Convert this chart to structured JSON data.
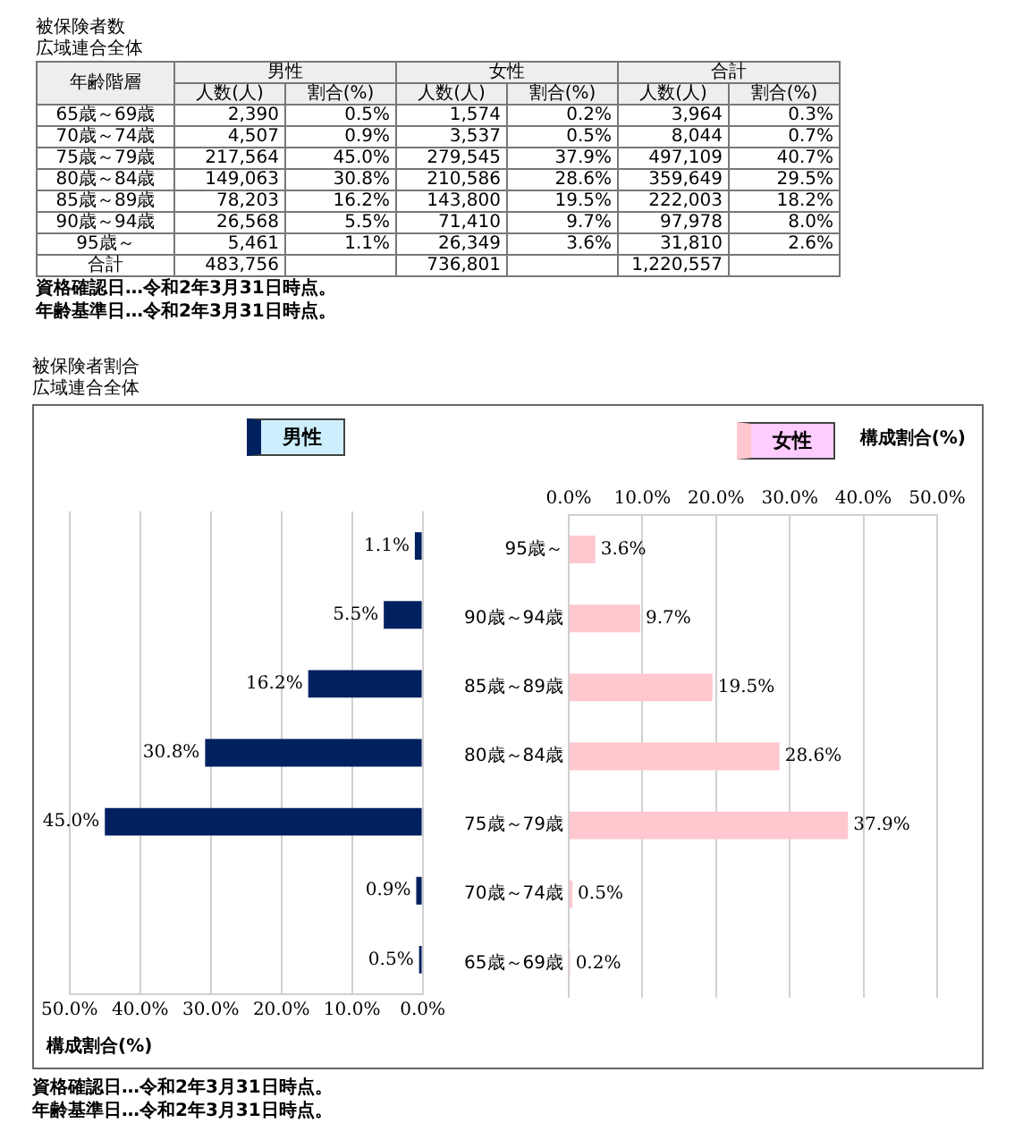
{
  "chart_data": [
    {
      "type": "heatmap",
      "title": "被保険者数",
      "subtitle": "広域連合全体",
      "ylabel": "年齢階層",
      "categories": [
        "人数(人)",
        "割合(%)",
        "人数(人)",
        "割合(%)",
        "人数(人)",
        "割合(%)"
      ],
      "y_categories": [
        "65歳～69歳",
        "70歳～74歳",
        "75歳～79歳",
        "80歳～84歳",
        "85歳～89歳",
        "90歳～94歳",
        "95歳～",
        "合計"
      ],
      "cells": [
        [
          2390,
          0.5,
          1574,
          0.2,
          3964,
          0.3
        ],
        [
          4507,
          0.9,
          3537,
          0.5,
          8044,
          0.7
        ],
        [
          217564,
          45.0,
          279545,
          37.9,
          497109,
          40.7
        ],
        [
          149063,
          30.8,
          210586,
          28.6,
          359649,
          29.5
        ],
        [
          78203,
          16.2,
          143800,
          19.5,
          222003,
          18.2
        ],
        [
          26568,
          5.5,
          71410,
          9.7,
          97978,
          8.0
        ],
        [
          5461,
          1.1,
          26349,
          3.6,
          31810,
          2.6
        ],
        [
          483756,
          null,
          736801,
          null,
          1220557,
          null
        ]
      ],
      "cell_labels": [
        [
          "2,390",
          "0.5%",
          "1,574",
          "0.2%",
          "3,964",
          "0.3%"
        ],
        [
          "4,507",
          "0.9%",
          "3,537",
          "0.5%",
          "8,044",
          "0.7%"
        ],
        [
          "217,564",
          "45.0%",
          "279,545",
          "37.9%",
          "497,109",
          "40.7%"
        ],
        [
          "149,063",
          "30.8%",
          "210,586",
          "28.6%",
          "359,649",
          "29.5%"
        ],
        [
          "78,203",
          "16.2%",
          "143,800",
          "19.5%",
          "222,003",
          "18.2%"
        ],
        [
          "26,568",
          "5.5%",
          "71,410",
          "9.7%",
          "97,978",
          "8.0%"
        ],
        [
          "5,461",
          "1.1%",
          "26,349",
          "3.6%",
          "31,810",
          "2.6%"
        ],
        [
          "483,756",
          null,
          "736,801",
          null,
          "1,220,557",
          null
        ]
      ],
      "annotations": [
        "男性",
        "女性",
        "合計",
        "資格確認日…令和2年3月31日時点。",
        "年齢基準日…令和2年3月31日時点。"
      ]
    },
    {
      "type": "bar",
      "orientation": "horizontal",
      "title": "被保険者割合",
      "subtitle": "広域連合全体",
      "categories": [
        null,
        null,
        null,
        null,
        null,
        null,
        null
      ],
      "series": [
        {
          "name": "男性",
          "color": "#002060",
          "values": [
            1.1,
            5.5,
            16.2,
            30.8,
            45.0,
            0.9,
            0.5
          ],
          "value_labels": [
            "1.1%",
            "5.5%",
            "16.2%",
            "30.8%",
            "45.0%",
            "0.9%",
            "0.5%"
          ]
        }
      ],
      "xlim": [
        50,
        0
      ],
      "xticks": [
        {
          "value": 50,
          "label": "50.0%"
        },
        {
          "value": 40,
          "label": "40.0%"
        },
        {
          "value": 30,
          "label": "30.0%"
        },
        {
          "value": 20,
          "label": "20.0%"
        },
        {
          "value": 10,
          "label": "10.0%"
        },
        {
          "value": 0,
          "label": "0.0%"
        }
      ],
      "xlabel": "構成割合(%)",
      "tick_labels": "x",
      "grid": "x",
      "legend": "top",
      "annotations": [
        "資格確認日…令和2年3月31日時点。",
        "年齢基準日…令和2年3月31日時点。"
      ]
    },
    {
      "type": "bar",
      "orientation": "horizontal",
      "categories": [
        "95歳～",
        "90歳～94歳",
        "85歳～89歳",
        "80歳～84歳",
        "75歳～79歳",
        "70歳～74歳",
        "65歳～69歳"
      ],
      "series": [
        {
          "name": "女性",
          "color": "#ffc7ce",
          "values": [
            3.6,
            9.7,
            19.5,
            28.6,
            37.9,
            0.5,
            0.2
          ],
          "value_labels": [
            "3.6%",
            "9.7%",
            "19.5%",
            "28.6%",
            "37.9%",
            "0.5%",
            "0.2%"
          ]
        }
      ],
      "xlim": [
        0,
        50
      ],
      "xticks": [
        {
          "value": 0,
          "label": "0.0%"
        },
        {
          "value": 10,
          "label": "10.0%"
        },
        {
          "value": 20,
          "label": "20.0%"
        },
        {
          "value": 30,
          "label": "30.0%"
        },
        {
          "value": 40,
          "label": "40.0%"
        },
        {
          "value": 50,
          "label": "50.0%"
        }
      ],
      "xlabel": "構成割合(%)",
      "grid": "x",
      "legend": "top"
    }
  ]
}
